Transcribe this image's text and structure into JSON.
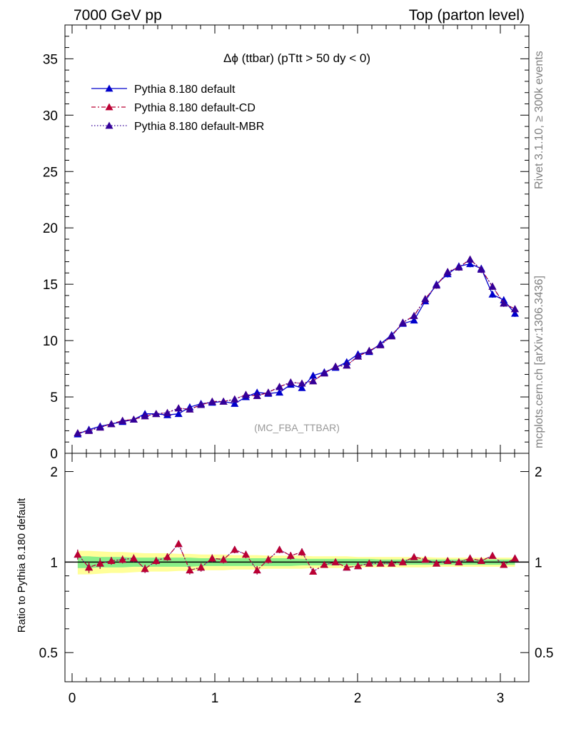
{
  "header": {
    "left": "7000 GeV pp",
    "right": "Top (parton level)"
  },
  "side": {
    "rivet": "Rivet 3.1.10, ≥ 300k events",
    "mcplots": "mcplots.cern.ch [arXiv:1306.3436]"
  },
  "chart_data": {
    "type": "line",
    "title": "Δϕ (ttbar) (pTtt > 50 dy < 0)",
    "analysis_label": "(MC_FBA_TTBAR)",
    "xlim": [
      -0.05,
      3.2
    ],
    "ylim": [
      0,
      38
    ],
    "ratio_ylim": [
      0.4,
      2.3
    ],
    "ratio_ylabel": "Ratio to Pythia 8.180 default",
    "x_ticks": [
      0,
      1,
      2,
      3
    ],
    "y_ticks": [
      0,
      5,
      10,
      15,
      20,
      25,
      30,
      35
    ],
    "ratio_ticks": [
      0.5,
      1,
      2
    ],
    "x": [
      0.0393,
      0.1178,
      0.1963,
      0.2749,
      0.3534,
      0.432,
      0.5105,
      0.589,
      0.6676,
      0.7461,
      0.8247,
      0.9032,
      0.9817,
      1.0603,
      1.1388,
      1.2174,
      1.2959,
      1.3744,
      1.453,
      1.5315,
      1.6101,
      1.6886,
      1.7671,
      1.8457,
      1.9242,
      2.0028,
      2.0813,
      2.1598,
      2.2384,
      2.3169,
      2.3955,
      2.474,
      2.5525,
      2.6311,
      2.7096,
      2.7882,
      2.8667,
      2.9452,
      3.0238,
      3.1023
    ],
    "series": [
      {
        "name": "Pythia 8.180 default",
        "color": "#0000cc",
        "style": "solid",
        "values": [
          1.7,
          2.1,
          2.4,
          2.6,
          2.8,
          3.0,
          3.5,
          3.5,
          3.4,
          3.5,
          4.1,
          4.4,
          4.5,
          4.6,
          4.4,
          5.0,
          5.4,
          5.3,
          5.4,
          6.1,
          5.8,
          6.9,
          7.2,
          7.6,
          8.1,
          8.8,
          9.0,
          9.7,
          10.5,
          11.5,
          11.8,
          13.5,
          15.0,
          15.9,
          16.6,
          16.8,
          16.4,
          14.1,
          13.6,
          12.4
        ],
        "errors": [
          0.15,
          0.15,
          0.15,
          0.15,
          0.15,
          0.15,
          0.15,
          0.15,
          0.15,
          0.15,
          0.15,
          0.15,
          0.15,
          0.15,
          0.15,
          0.15,
          0.15,
          0.15,
          0.15,
          0.15,
          0.15,
          0.2,
          0.2,
          0.2,
          0.2,
          0.2,
          0.2,
          0.2,
          0.2,
          0.25,
          0.25,
          0.25,
          0.3,
          0.3,
          0.3,
          0.3,
          0.3,
          0.3,
          0.3,
          0.3
        ]
      },
      {
        "name": "Pythia 8.180 default-CD",
        "color": "#bb0033",
        "style": "dashdot",
        "values": [
          1.8,
          2.0,
          2.3,
          2.6,
          2.9,
          3.0,
          3.3,
          3.5,
          3.6,
          4.0,
          3.9,
          4.3,
          4.6,
          4.6,
          4.8,
          5.2,
          5.1,
          5.4,
          5.9,
          6.3,
          6.2,
          6.4,
          7.1,
          7.7,
          7.8,
          8.6,
          9.1,
          9.6,
          10.4,
          11.6,
          12.2,
          13.7,
          14.9,
          16.1,
          16.5,
          17.2,
          16.3,
          14.8,
          13.3,
          12.8
        ],
        "errors": [
          0.15,
          0.15,
          0.15,
          0.15,
          0.15,
          0.15,
          0.15,
          0.15,
          0.15,
          0.15,
          0.15,
          0.15,
          0.15,
          0.15,
          0.15,
          0.15,
          0.15,
          0.15,
          0.15,
          0.15,
          0.15,
          0.2,
          0.2,
          0.2,
          0.2,
          0.2,
          0.2,
          0.2,
          0.2,
          0.25,
          0.25,
          0.25,
          0.3,
          0.3,
          0.3,
          0.3,
          0.3,
          0.3,
          0.3,
          0.3
        ]
      },
      {
        "name": "Pythia 8.180 default-MBR",
        "color": "#330099",
        "style": "dotted",
        "values": [
          1.8,
          2.0,
          2.3,
          2.6,
          2.9,
          3.0,
          3.3,
          3.5,
          3.6,
          4.0,
          3.9,
          4.3,
          4.6,
          4.6,
          4.8,
          5.2,
          5.1,
          5.4,
          5.9,
          6.3,
          6.2,
          6.4,
          7.1,
          7.7,
          7.8,
          8.6,
          9.1,
          9.6,
          10.4,
          11.6,
          12.2,
          13.7,
          14.9,
          16.1,
          16.5,
          17.2,
          16.3,
          14.8,
          13.3,
          12.8
        ],
        "errors": [
          0.15,
          0.15,
          0.15,
          0.15,
          0.15,
          0.15,
          0.15,
          0.15,
          0.15,
          0.15,
          0.15,
          0.15,
          0.15,
          0.15,
          0.15,
          0.15,
          0.15,
          0.15,
          0.15,
          0.15,
          0.15,
          0.2,
          0.2,
          0.2,
          0.2,
          0.2,
          0.2,
          0.2,
          0.2,
          0.25,
          0.25,
          0.25,
          0.3,
          0.3,
          0.3,
          0.3,
          0.3,
          0.3,
          0.3,
          0.3
        ]
      }
    ],
    "ratio": {
      "values": [
        1.06,
        0.96,
        0.99,
        1.01,
        1.02,
        1.03,
        0.95,
        1.01,
        1.04,
        1.15,
        0.94,
        0.96,
        1.03,
        1.02,
        1.1,
        1.06,
        0.94,
        1.02,
        1.1,
        1.05,
        1.08,
        0.93,
        0.98,
        1.0,
        0.96,
        0.97,
        0.99,
        0.99,
        0.99,
        1.0,
        1.04,
        1.02,
        0.99,
        1.01,
        1.0,
        1.03,
        1.01,
        1.05,
        0.98,
        1.03
      ],
      "errors": [
        0.04,
        0.04,
        0.04,
        0.03,
        0.03,
        0.03,
        0.03,
        0.03,
        0.03,
        0.03,
        0.03,
        0.03,
        0.03,
        0.03,
        0.03,
        0.03,
        0.03,
        0.03,
        0.03,
        0.03,
        0.03,
        0.02,
        0.02,
        0.02,
        0.02,
        0.02,
        0.02,
        0.02,
        0.02,
        0.02,
        0.02,
        0.02,
        0.02,
        0.02,
        0.02,
        0.02,
        0.02,
        0.02,
        0.02,
        0.02
      ],
      "band_inner": [
        0.045,
        0.045,
        0.04,
        0.04,
        0.04,
        0.035,
        0.035,
        0.035,
        0.035,
        0.035,
        0.035,
        0.03,
        0.03,
        0.03,
        0.03,
        0.03,
        0.03,
        0.03,
        0.03,
        0.03,
        0.025,
        0.025,
        0.025,
        0.025,
        0.025,
        0.025,
        0.025,
        0.02,
        0.02,
        0.02,
        0.02,
        0.02,
        0.02,
        0.02,
        0.02,
        0.02,
        0.02,
        0.02,
        0.02,
        0.02
      ],
      "band_outer": [
        0.09,
        0.09,
        0.085,
        0.08,
        0.08,
        0.075,
        0.07,
        0.07,
        0.07,
        0.065,
        0.065,
        0.06,
        0.06,
        0.06,
        0.055,
        0.055,
        0.055,
        0.05,
        0.05,
        0.05,
        0.05,
        0.045,
        0.045,
        0.045,
        0.045,
        0.04,
        0.04,
        0.04,
        0.04,
        0.04,
        0.04,
        0.04,
        0.035,
        0.035,
        0.035,
        0.035,
        0.035,
        0.035,
        0.035,
        0.035
      ],
      "band_inner_color": "#88ee88",
      "band_outer_color": "#ffff99"
    }
  }
}
